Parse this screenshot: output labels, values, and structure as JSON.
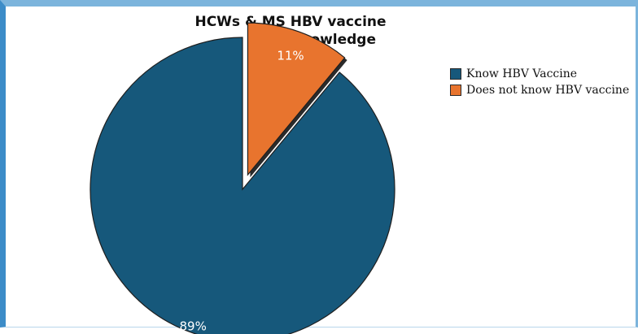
{
  "chart_data": {
    "type": "pie",
    "title_line1": "HCWs & MS HBV vaccine",
    "title_line2": "knowledge",
    "categories": [
      "Know HBV Vaccine",
      "Does not know HBV vaccine"
    ],
    "values": [
      89,
      11
    ],
    "value_labels": [
      "89%",
      "11%"
    ],
    "exploded": [
      false,
      true
    ],
    "colors": [
      "#16587b",
      "#e8742e"
    ],
    "legend_position": "right"
  }
}
